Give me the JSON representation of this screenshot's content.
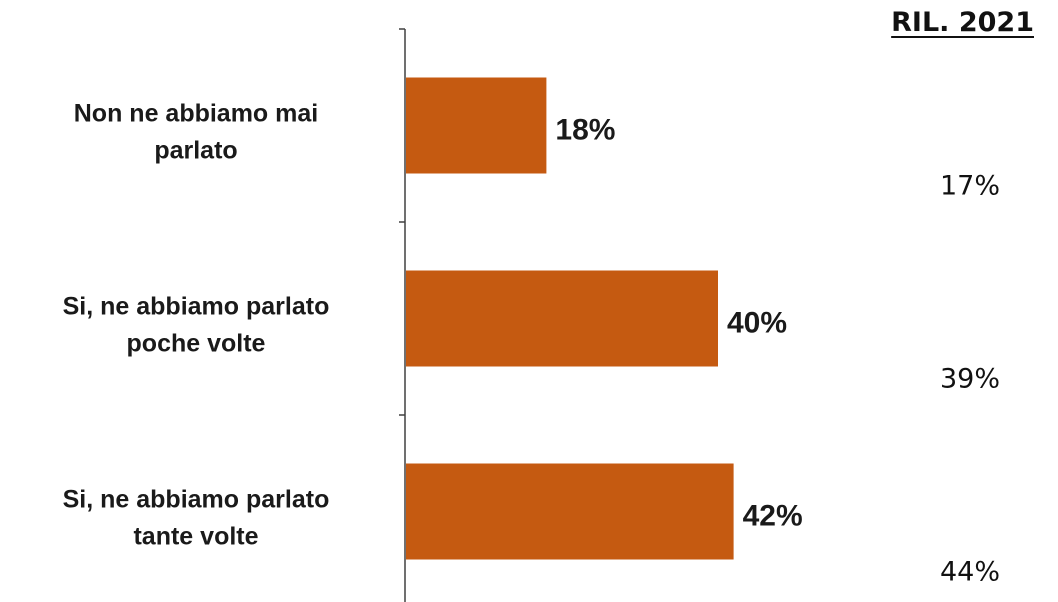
{
  "chart_data": {
    "type": "bar",
    "orientation": "horizontal",
    "categories": [
      [
        "Non ne abbiamo mai",
        "parlato"
      ],
      [
        "Si, ne abbiamo parlato",
        "poche volte"
      ],
      [
        "Si, ne abbiamo parlato",
        "tante volte"
      ]
    ],
    "values": [
      18,
      40,
      42
    ],
    "value_labels": [
      "18%",
      "40%",
      "42%"
    ],
    "xlim": [
      0,
      100
    ],
    "grid": false,
    "bar_color": "#c55a11",
    "comparison": {
      "header": "RIL. 2021",
      "values": [
        "17%",
        "39%",
        "44%"
      ]
    }
  }
}
